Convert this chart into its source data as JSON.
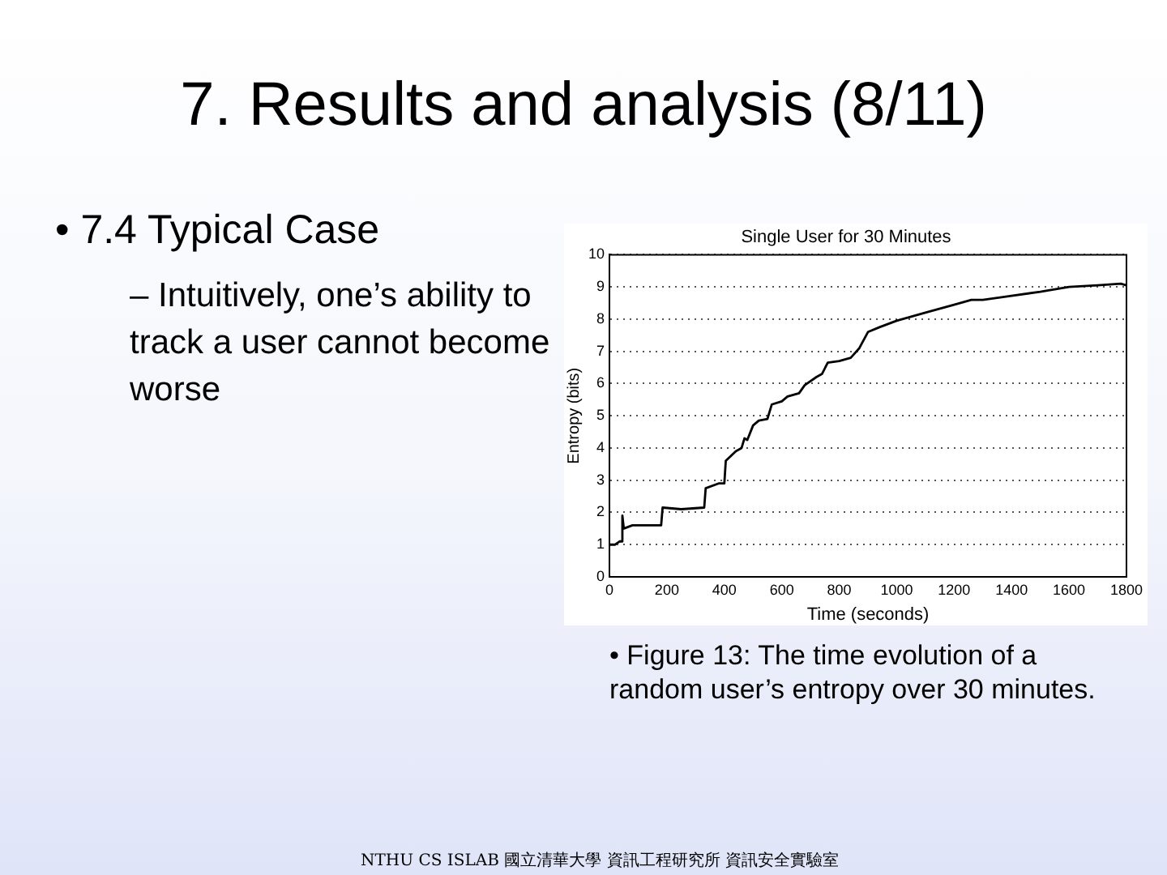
{
  "chart_data": {
    "type": "line",
    "title": "Single User for 30 Minutes",
    "xlabel": "Time (seconds)",
    "ylabel": "Entropy (bits)",
    "x": [
      0,
      20,
      35,
      40,
      45,
      50,
      80,
      180,
      185,
      250,
      330,
      335,
      380,
      400,
      405,
      440,
      460,
      470,
      480,
      500,
      520,
      550,
      565,
      600,
      620,
      660,
      680,
      720,
      740,
      760,
      800,
      840,
      870,
      900,
      940,
      1000,
      1100,
      1200,
      1260,
      1300,
      1380,
      1500,
      1600,
      1700,
      1780,
      1800
    ],
    "series": [
      {
        "color": "#000000",
        "values": [
          1.0,
          1.0,
          1.1,
          1.1,
          1.9,
          1.5,
          1.6,
          1.6,
          2.15,
          2.1,
          2.15,
          2.75,
          2.9,
          2.9,
          3.6,
          3.9,
          4.0,
          4.3,
          4.25,
          4.7,
          4.85,
          4.9,
          5.35,
          5.45,
          5.6,
          5.7,
          5.95,
          6.2,
          6.3,
          6.65,
          6.7,
          6.8,
          7.1,
          7.6,
          7.75,
          7.95,
          8.2,
          8.45,
          8.6,
          8.6,
          8.7,
          8.85,
          9.0,
          9.05,
          9.1,
          9.05
        ]
      }
    ],
    "xlim": [
      0,
      1800
    ],
    "xticks": [
      0,
      200,
      400,
      600,
      800,
      1000,
      1200,
      1400,
      1600,
      1800
    ],
    "ylim": [
      0,
      10
    ],
    "yticks": [
      0,
      1,
      2,
      3,
      4,
      5,
      6,
      7,
      8,
      9,
      10
    ],
    "grid": "y",
    "marker": "none",
    "line_style": "solid",
    "legend": false,
    "annotations": [
      "7. Results and analysis (8/11)",
      "• 7.4  Typical Case",
      "– Intuitively, one’s ability to track a user cannot become worse",
      "• Figure 13: The time evolution of a random user’s entropy over 30 minutes.",
      "NTHU CS ISLAB 國立清華大學 資訊工程研究所 資訊安全實驗室"
    ]
  }
}
